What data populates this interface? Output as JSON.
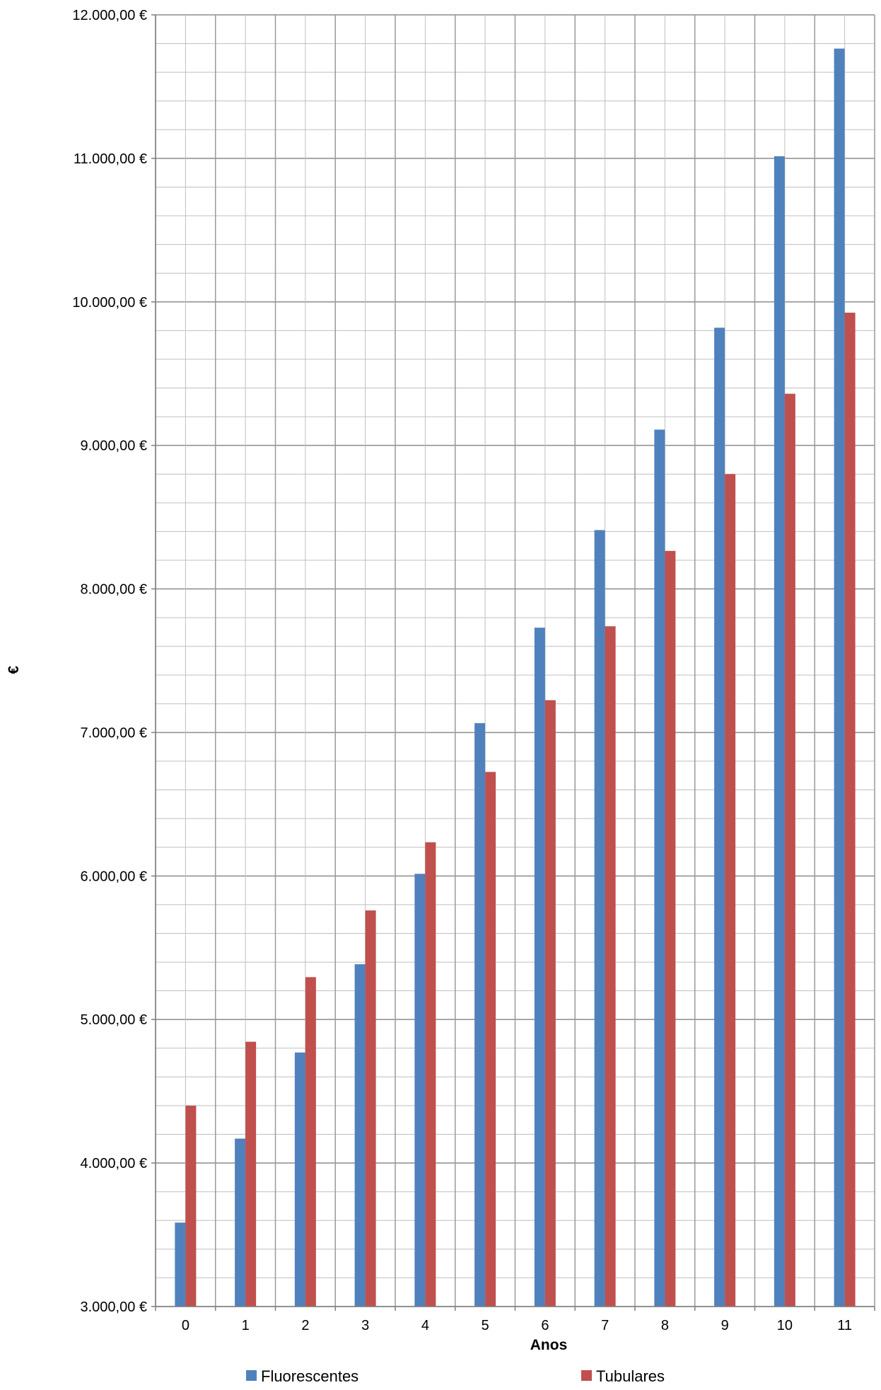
{
  "chart_data": {
    "type": "bar",
    "title": "",
    "xlabel": "Anos",
    "ylabel": "€",
    "categories": [
      "0",
      "1",
      "2",
      "3",
      "4",
      "5",
      "6",
      "7",
      "8",
      "9",
      "10",
      "11"
    ],
    "series": [
      {
        "name": "Fluorescentes",
        "color": "#4F81BD",
        "values": [
          3585,
          4170,
          4770,
          5385,
          6015,
          7065,
          7730,
          8410,
          9110,
          9820,
          11015,
          11765
        ]
      },
      {
        "name": "Tubulares",
        "color": "#C0504D",
        "values": [
          4400,
          4845,
          5295,
          5760,
          6235,
          6725,
          7225,
          7740,
          8265,
          8800,
          9360,
          9925
        ]
      }
    ],
    "ylim": [
      3000,
      12000
    ],
    "yticks": [
      "3.000,00 €",
      "4.000,00 €",
      "5.000,00 €",
      "6.000,00 €",
      "7.000,00 €",
      "8.000,00 €",
      "9.000,00 €",
      "10.000,00 €",
      "11.000,00 €",
      "12.000,00 €"
    ],
    "major_step": 1000,
    "minor_step": 200,
    "grid": true,
    "legend_position": "bottom"
  }
}
